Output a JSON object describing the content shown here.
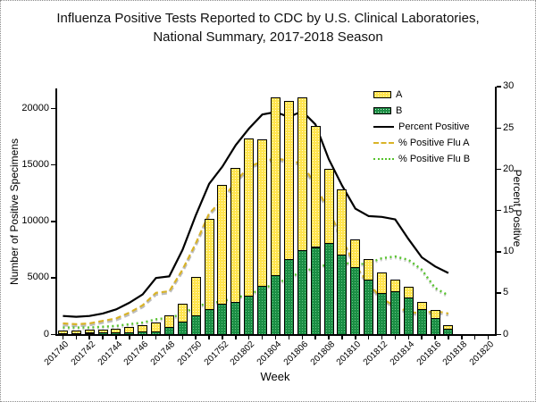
{
  "title": {
    "line1": "Influenza Positive Tests Reported to CDC by U.S. Clinical Laboratories,",
    "line2": "National Summary, 2017-2018 Season"
  },
  "axes": {
    "left": {
      "label": "Number of Positive Specimens",
      "ticks": [
        "0",
        "5000",
        "10000",
        "15000",
        "20000"
      ]
    },
    "right": {
      "label": "Percent Positive",
      "ticks": [
        "0",
        "5",
        "10",
        "15",
        "20",
        "25",
        "30"
      ]
    },
    "x": {
      "label": "Week"
    }
  },
  "legend": {
    "items": [
      {
        "label": "A",
        "swatch": "bar",
        "color": "#ffe44d"
      },
      {
        "label": "B",
        "swatch": "bar",
        "color": "#1b8e44"
      },
      {
        "label": "Percent Positive",
        "swatch": "line-solid",
        "color": "#000000"
      },
      {
        "label": "% Positive Flu A",
        "swatch": "line-dashed",
        "color": "#d9b327"
      },
      {
        "label": "% Positive Flu B",
        "swatch": "line-dotted",
        "color": "#56c32c"
      }
    ]
  },
  "chart_data": {
    "type": "combo: stacked bars (left axis) + percent lines (right axis)",
    "title": "Influenza Positive Tests Reported to CDC by U.S. Clinical Laboratories, National Summary, 2017-2018 Season",
    "xlabel": "Week",
    "ylabel_left": "Number of Positive Specimens",
    "ylabel_right": "Percent Positive",
    "ylim_left": [
      0,
      22000
    ],
    "ylim_right": [
      0,
      30
    ],
    "grid": false,
    "legend_position": "top-right-inside",
    "axis_weeks": [
      "201740",
      "201741",
      "201742",
      "201743",
      "201744",
      "201745",
      "201746",
      "201747",
      "201748",
      "201749",
      "201750",
      "201751",
      "201752",
      "201801",
      "201802",
      "201803",
      "201804",
      "201805",
      "201806",
      "201807",
      "201808",
      "201809",
      "201810",
      "201811",
      "201812",
      "201813",
      "201814",
      "201815",
      "201816",
      "201817",
      "201818",
      "201819",
      "201820"
    ],
    "x_tick_label_every": 2,
    "x": [
      "201740",
      "201741",
      "201742",
      "201743",
      "201744",
      "201745",
      "201746",
      "201747",
      "201748",
      "201749",
      "201750",
      "201751",
      "201752",
      "201801",
      "201802",
      "201803",
      "201804",
      "201805",
      "201806",
      "201807",
      "201808",
      "201809",
      "201810",
      "201811",
      "201812",
      "201813",
      "201814",
      "201815",
      "201816",
      "201817"
    ],
    "series": [
      {
        "name": "A",
        "type": "bar",
        "stack_order": "top",
        "color": "#ffe44d",
        "values": [
          220,
          215,
          260,
          300,
          355,
          440,
          610,
          770,
          1040,
          1600,
          3390,
          7970,
          10505,
          11890,
          13980,
          12910,
          15730,
          13980,
          13555,
          10750,
          6535,
          5780,
          2440,
          1840,
          1815,
          1035,
          915,
          650,
          700,
          310
        ]
      },
      {
        "name": "B",
        "type": "bar",
        "stack_order": "bottom",
        "color": "#1b8e44",
        "values": [
          90,
          95,
          110,
          120,
          140,
          160,
          200,
          250,
          630,
          1100,
          1680,
          2200,
          2665,
          2850,
          3370,
          4290,
          5200,
          6640,
          7425,
          7700,
          8075,
          7000,
          5900,
          4800,
          3650,
          3765,
          3240,
          2195,
          1400,
          450
        ]
      },
      {
        "name": "Percent Positive",
        "type": "line",
        "axis": "right",
        "style": "solid",
        "color": "#000000",
        "values": [
          2.2,
          2.1,
          2.2,
          2.5,
          3.0,
          3.8,
          4.8,
          6.8,
          7.0,
          10.2,
          14.4,
          18.2,
          20.3,
          22.9,
          24.9,
          26.6,
          26.9,
          26.3,
          27.0,
          25.4,
          21.2,
          18.0,
          15.2,
          14.3,
          14.2,
          13.9,
          11.5,
          9.3,
          8.2,
          7.4
        ]
      },
      {
        "name": "% Positive Flu A",
        "type": "line",
        "axis": "right",
        "style": "dashed",
        "color": "#d9b327",
        "values": [
          1.3,
          1.2,
          1.3,
          1.6,
          1.9,
          2.6,
          3.5,
          5.0,
          5.2,
          7.8,
          11.0,
          14.6,
          16.3,
          18.5,
          20.3,
          20.9,
          21.3,
          21.0,
          20.7,
          18.0,
          15.0,
          11.5,
          8.3,
          6.1,
          4.3,
          3.4,
          2.7,
          2.5,
          2.8,
          2.5
        ]
      },
      {
        "name": "% Positive Flu B",
        "type": "line",
        "axis": "right",
        "style": "dotted",
        "color": "#56c32c",
        "values": [
          0.8,
          0.8,
          0.8,
          0.9,
          1.0,
          1.2,
          1.4,
          1.8,
          2.0,
          2.4,
          3.4,
          3.7,
          4.0,
          4.4,
          4.8,
          5.5,
          6.1,
          6.8,
          7.6,
          8.0,
          8.5,
          8.7,
          8.4,
          8.6,
          9.2,
          9.4,
          9.0,
          7.8,
          5.6,
          4.7
        ]
      }
    ]
  }
}
